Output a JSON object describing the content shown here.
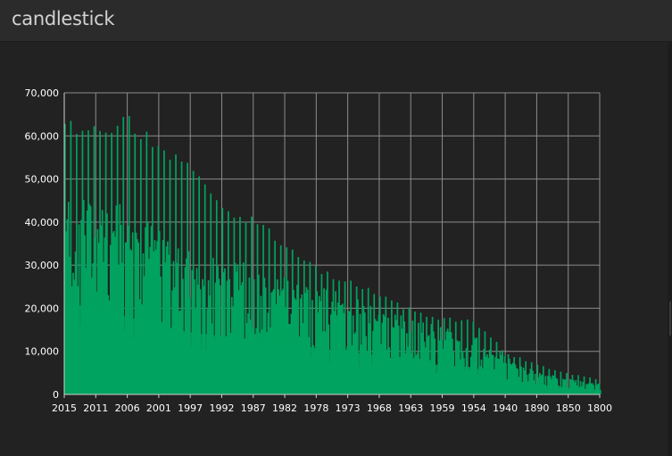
{
  "panel": {
    "title": "candlestick"
  },
  "chart_data": {
    "type": "bar",
    "title": "",
    "xlabel": "",
    "ylabel": "",
    "x_reversed": true,
    "x_range": [
      1800,
      2015
    ],
    "ylim": [
      0,
      70000
    ],
    "grid": true,
    "legend": "none",
    "y_ticks": [
      "70,000",
      "60,000",
      "50,000",
      "40,000",
      "30,000",
      "20,000",
      "10,000",
      "0"
    ],
    "x_ticks": [
      "2015",
      "2011",
      "2006",
      "2001",
      "1997",
      "1992",
      "1987",
      "1982",
      "1978",
      "1973",
      "1968",
      "1963",
      "1959",
      "1954",
      "1940",
      "1890",
      "1850",
      "1800"
    ],
    "series": [
      {
        "color": "#00a35f",
        "envelope": {
          "x": [
            2015,
            2011,
            2006,
            2001,
            1997,
            1992,
            1987,
            1982,
            1978,
            1973,
            1968,
            1963,
            1959,
            1954,
            1940,
            1890,
            1850,
            1800
          ],
          "peak": [
            64500,
            63500,
            65500,
            59500,
            54000,
            44000,
            42000,
            35000,
            30000,
            27000,
            24000,
            20000,
            18000,
            17500,
            10000,
            7000,
            5000,
            3500
          ],
          "upper": [
            44000,
            42500,
            42000,
            37000,
            32000,
            30000,
            29000,
            27000,
            24000,
            22000,
            20000,
            17000,
            15000,
            13500,
            8500,
            5000,
            3500,
            2500
          ],
          "lower": [
            24000,
            22000,
            20000,
            18000,
            16000,
            15000,
            14000,
            13000,
            12000,
            11000,
            10000,
            8500,
            7500,
            7000,
            4000,
            2500,
            1800,
            1200
          ]
        }
      }
    ]
  }
}
